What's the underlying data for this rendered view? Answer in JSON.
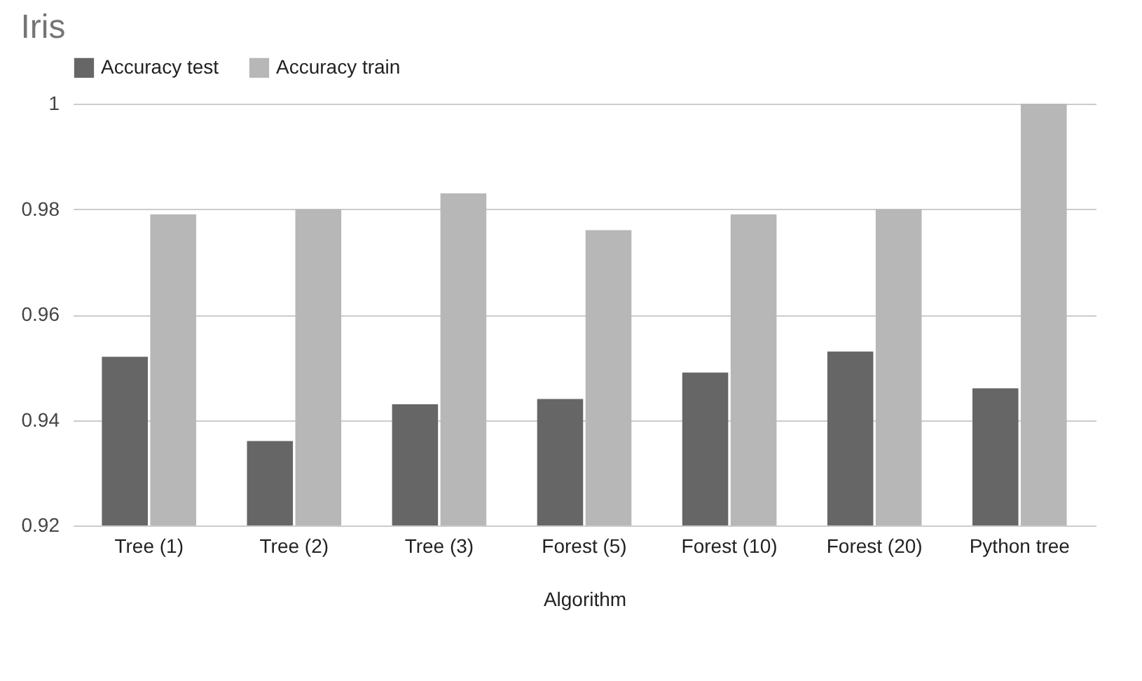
{
  "chart_data": {
    "type": "bar",
    "title": "Iris",
    "xlabel": "Algorithm",
    "categories": [
      "Tree (1)",
      "Tree (2)",
      "Tree (3)",
      "Forest (5)",
      "Forest (10)",
      "Forest (20)",
      "Python tree"
    ],
    "series": [
      {
        "name": "Accuracy test",
        "color": "#666666",
        "values": [
          0.952,
          0.936,
          0.943,
          0.944,
          0.949,
          0.953,
          0.946
        ]
      },
      {
        "name": "Accuracy train",
        "color": "#b7b7b7",
        "values": [
          0.979,
          0.98,
          0.983,
          0.976,
          0.979,
          0.98,
          1.0
        ]
      }
    ],
    "ylim": [
      0.92,
      1
    ],
    "yticks": [
      0.92,
      0.94,
      0.96,
      0.98,
      1
    ],
    "grid": "y",
    "legend": "top"
  }
}
